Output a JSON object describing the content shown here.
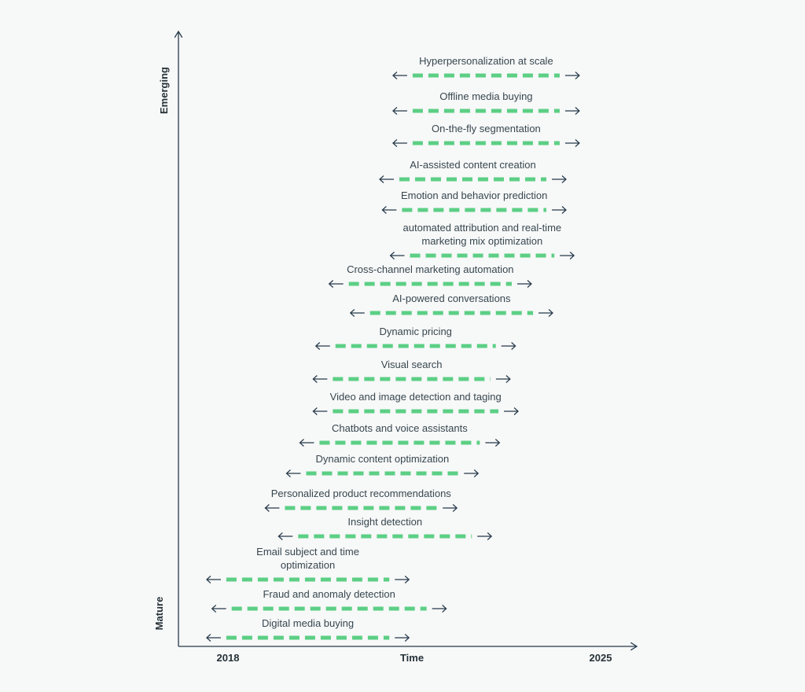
{
  "chart_data": {
    "type": "timeline",
    "x_axis": {
      "label": "Time",
      "start_label": "2018",
      "end_label": "2025"
    },
    "y_axis": {
      "top_label": "Emerging",
      "bottom_label": "Mature"
    },
    "colors": {
      "dash": "#5ccf85",
      "arrow": "#263a4a",
      "axis": "#263a4a",
      "text": "#37474f"
    },
    "items": [
      {
        "label": [
          "Hyperpersonalization at scale"
        ],
        "start": 2021.1,
        "end": 2024.6
      },
      {
        "label": [
          "Offline media buying"
        ],
        "start": 2021.1,
        "end": 2024.6
      },
      {
        "label": [
          "On-the-fly segmentation"
        ],
        "start": 2021.1,
        "end": 2024.6
      },
      {
        "label": [
          "AI-assisted content creation"
        ],
        "start": 2020.85,
        "end": 2024.35
      },
      {
        "label": [
          "Emotion and behavior prediction"
        ],
        "start": 2020.9,
        "end": 2024.35
      },
      {
        "label": [
          "automated attribution and real-time",
          "marketing mix optimization"
        ],
        "start": 2021.05,
        "end": 2024.5
      },
      {
        "label": [
          "Cross-channel marketing automation"
        ],
        "start": 2019.9,
        "end": 2023.7
      },
      {
        "label": [
          "AI-powered conversations"
        ],
        "start": 2020.3,
        "end": 2024.1
      },
      {
        "label": [
          "Dynamic pricing"
        ],
        "start": 2019.65,
        "end": 2023.4
      },
      {
        "label": [
          "Visual search"
        ],
        "start": 2019.6,
        "end": 2023.3
      },
      {
        "label": [
          "Video and image detection and taging"
        ],
        "start": 2019.6,
        "end": 2023.45
      },
      {
        "label": [
          "Chatbots and voice assistants"
        ],
        "start": 2019.35,
        "end": 2023.1
      },
      {
        "label": [
          "Dynamic content optimization"
        ],
        "start": 2019.1,
        "end": 2022.7
      },
      {
        "label": [
          "Personalized product recommendations"
        ],
        "start": 2018.7,
        "end": 2022.3
      },
      {
        "label": [
          "Insight detection"
        ],
        "start": 2018.95,
        "end": 2022.95
      },
      {
        "label": [
          "Email subject and time",
          "optimization"
        ],
        "start": 2017.6,
        "end": 2021.4
      },
      {
        "label": [
          "Fraud and anomaly detection"
        ],
        "start": 2017.7,
        "end": 2022.1
      },
      {
        "label": [
          "Digital media buying"
        ],
        "start": 2017.6,
        "end": 2021.4
      }
    ]
  }
}
